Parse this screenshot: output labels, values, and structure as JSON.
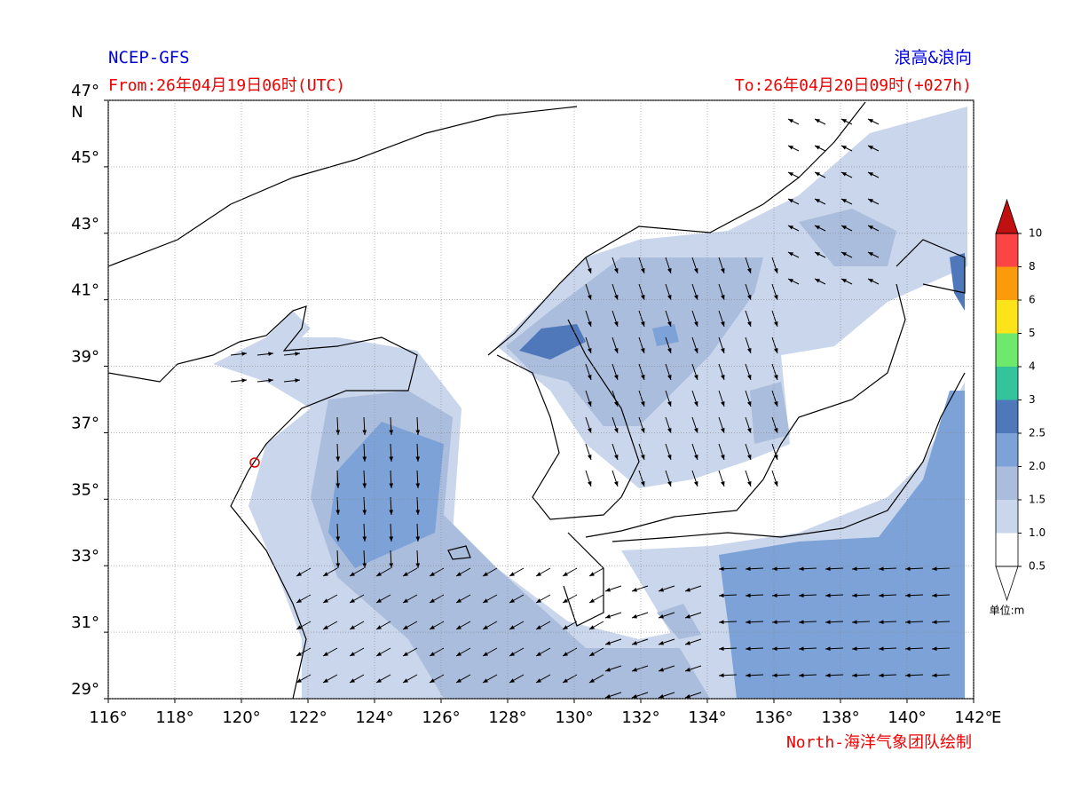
{
  "header": {
    "left_title": "NCEP-GFS",
    "right_title": "浪高&浪向",
    "from": "From:26年04月19日06时(UTC)",
    "to": "To:26年04月20日09时(+027h)"
  },
  "map": {
    "lonlim": [
      116,
      142
    ],
    "latlim": [
      29,
      47
    ],
    "lon_ticks": [
      {
        "value": 116,
        "label": "116°"
      },
      {
        "value": 118,
        "label": "118°"
      },
      {
        "value": 120,
        "label": "120°"
      },
      {
        "value": 122,
        "label": "122°"
      },
      {
        "value": 124,
        "label": "124°"
      },
      {
        "value": 126,
        "label": "126°"
      },
      {
        "value": 128,
        "label": "128°"
      },
      {
        "value": 130,
        "label": "130°"
      },
      {
        "value": 132,
        "label": "132°"
      },
      {
        "value": 134,
        "label": "134°"
      },
      {
        "value": 136,
        "label": "136°"
      },
      {
        "value": 138,
        "label": "138°"
      },
      {
        "value": 140,
        "label": "140°"
      },
      {
        "value": 142,
        "label": "142°"
      }
    ],
    "lat_ticks": [
      {
        "value": 47,
        "label": "47°"
      },
      {
        "value": 45,
        "label": "45°"
      },
      {
        "value": 43,
        "label": "43°"
      },
      {
        "value": 41,
        "label": "41°"
      },
      {
        "value": 39,
        "label": "39°"
      },
      {
        "value": 37,
        "label": "37°"
      },
      {
        "value": 35,
        "label": "35°"
      },
      {
        "value": 33,
        "label": "33°"
      },
      {
        "value": 31,
        "label": "31°"
      },
      {
        "value": 29,
        "label": "29°"
      }
    ],
    "lon_unit": "E",
    "lat_unit": "N"
  },
  "colorbar": {
    "levels": [
      {
        "value": 0.5,
        "label": "0.5"
      },
      {
        "value": 1.0,
        "label": "1.0"
      },
      {
        "value": 1.5,
        "label": "1.5"
      },
      {
        "value": 2.0,
        "label": "2.0"
      },
      {
        "value": 2.5,
        "label": "2.5"
      },
      3,
      4,
      5,
      6,
      8,
      10
    ],
    "colors": [
      "#ffffff",
      "#c9d6ec",
      "#abbddc",
      "#7ca2d7",
      "#4e78b9",
      "#33c49b",
      "#6fe96b",
      "#fce31a",
      "#fb9b0c",
      "#fb4545"
    ],
    "over_color": "#c01010",
    "under_color": "#ffffff",
    "unit": "单位:m"
  },
  "credit": "North-海洋气象团队绘制"
}
